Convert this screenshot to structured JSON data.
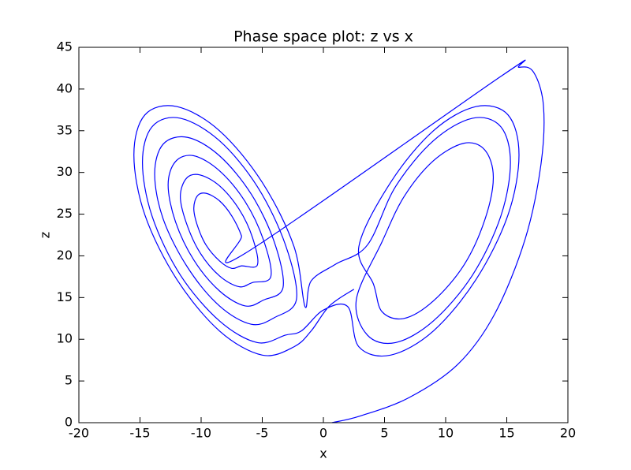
{
  "chart_data": {
    "type": "line",
    "title": "Phase space plot: z vs x",
    "x_label": "x",
    "y_label": "z",
    "color": "#0000ff",
    "xlim": [
      -20,
      20
    ],
    "ylim": [
      0,
      45
    ],
    "xticks": [
      -20,
      -15,
      -10,
      -5,
      0,
      5,
      10,
      15,
      20
    ],
    "yticks": [
      0,
      5,
      10,
      15,
      20,
      25,
      30,
      35,
      40,
      45
    ],
    "x": [
      0.7,
      3,
      7,
      11,
      14,
      16.5,
      17.8,
      18,
      17.2,
      16,
      14.5,
      -6.4,
      -6.7,
      -7.5,
      -8.5,
      -9.6,
      -10.3,
      -10.6,
      -10.3,
      -9.6,
      -8.5,
      -7.5,
      -6.7,
      -5.4,
      -5.8,
      -6.9,
      -8.5,
      -10.1,
      -11.2,
      -11.7,
      -11.2,
      -10.1,
      -8.5,
      -6.9,
      -5.8,
      -4.3,
      -4.9,
      -6.4,
      -8.5,
      -10.6,
      -12.1,
      -12.7,
      -12.1,
      -10.6,
      -8.5,
      -6.4,
      -4.9,
      -3.3,
      -4,
      -5.9,
      -8.5,
      -11.1,
      -13.1,
      -13.8,
      -13.1,
      -11.1,
      -8.5,
      -5.9,
      -4,
      -2.2,
      -3.1,
      -5.4,
      -8.5,
      -11.7,
      -14,
      -14.8,
      -14,
      -11.7,
      -8.5,
      -5.4,
      -3.1,
      -1.8,
      0,
      2,
      2.9,
      5.5,
      9,
      12.5,
      15.1,
      16,
      15.1,
      12.5,
      9,
      5.5,
      2.9,
      4.1,
      4.8,
      6.6,
      9,
      11.5,
      13.2,
      13.9,
      13.2,
      11.5,
      9,
      6.6,
      4.8,
      2.7,
      3.6,
      5.9,
      9,
      12.2,
      14.5,
      15.3,
      14.5,
      12.2,
      9,
      5.9,
      3.6,
      1,
      -1,
      -1.5,
      -2.4,
      -5,
      -8.5,
      -12,
      -14.6,
      -15.5,
      -14.6,
      -12,
      -8.5,
      -5,
      -2.4,
      -1,
      0.5,
      2.5
    ],
    "values": [
      0,
      0.8,
      3,
      7,
      13,
      22,
      31,
      38,
      42,
      42.6,
      41.5,
      20.3,
      22.4,
      24.8,
      26.6,
      27.5,
      27.2,
      25.7,
      23.6,
      21.3,
      19.4,
      18.5,
      18.8,
      18.9,
      22.2,
      25.6,
      28.4,
      29.7,
      29.3,
      27.1,
      23.9,
      20.4,
      17.6,
      16.3,
      16.8,
      17.5,
      21.9,
      26.5,
      30.2,
      32,
      31.3,
      28.5,
      24.1,
      19.5,
      15.8,
      14,
      14.7,
      16.2,
      21.6,
      27.4,
      32,
      34.2,
      33.4,
      29.8,
      24.4,
      18.6,
      14,
      11.8,
      12.6,
      14.8,
      21.3,
      28.3,
      33.8,
      36.5,
      35.5,
      31.2,
      24.7,
      17.7,
      12.2,
      9.6,
      10.5,
      11,
      13.5,
      13.9,
      9.1,
      8.1,
      11,
      17.2,
      24.9,
      32.1,
      36.9,
      37.9,
      35,
      28.8,
      21.1,
      16.6,
      13.3,
      12.5,
      14.6,
      18.9,
      24.3,
      29.4,
      32.7,
      33.5,
      31.4,
      27.1,
      21.7,
      14.8,
      10.5,
      9.6,
      12.2,
      17.7,
      24.7,
      31.2,
      35.5,
      36.5,
      33.8,
      28.3,
      21.3,
      19,
      17,
      13.9,
      21.1,
      28.8,
      35,
      37.9,
      36.9,
      32.1,
      24.9,
      17.2,
      11,
      8.1,
      9.1,
      11,
      14,
      16
    ]
  }
}
